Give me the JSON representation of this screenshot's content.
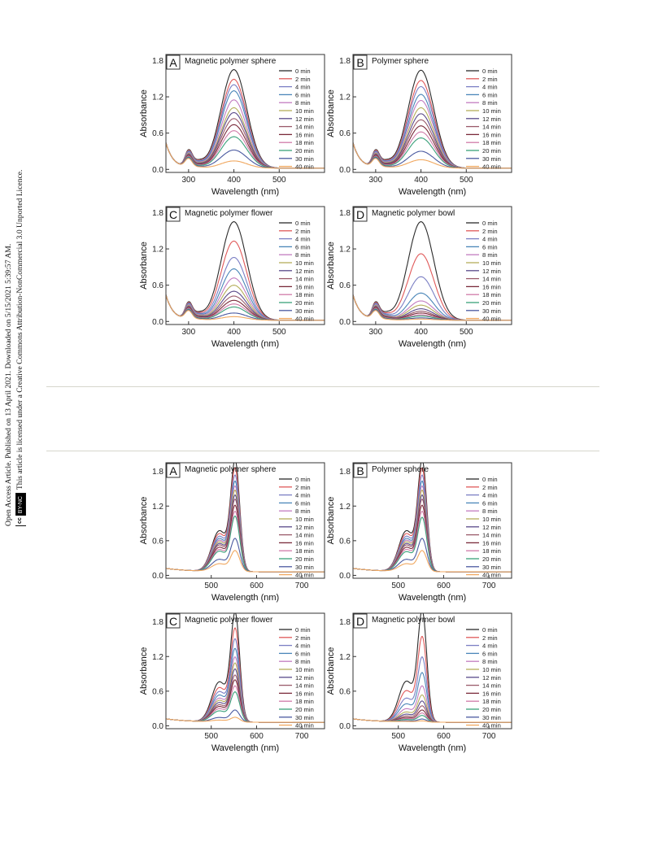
{
  "sidebar": {
    "line1": "Open Access Article. Published on 13 April 2021. Downloaded on 5/15/2021 5:39:57 AM.",
    "line2": "This article is licensed under a Creative Commons Attribution-NonCommercial 3.0 Unported Licence.",
    "badge_cc": "cc",
    "badge_by": "BY-NC"
  },
  "colors": {
    "series": [
      "#2b2b2b",
      "#e05a5a",
      "#7b7fc4",
      "#4a86b8",
      "#c27cc0",
      "#b5ae5a",
      "#5a4a8a",
      "#9a5a6a",
      "#7a2a3a",
      "#d07aa8",
      "#3aa07a",
      "#4a5aa0",
      "#f0a860",
      "#9a5ac8"
    ],
    "axis": "#333333",
    "rule": "#d6d6cc"
  },
  "chart_data": [
    {
      "id": "top-A",
      "type": "line",
      "panel_letter": "A",
      "title": "Magnetic polymer sphere",
      "xlabel": "Wavelength (nm)",
      "ylabel": "Absorbance",
      "xlim": [
        250,
        600
      ],
      "ylim": [
        -0.05,
        1.9
      ],
      "xticks": [
        300,
        400,
        500
      ],
      "yticks": [
        0.0,
        0.6,
        1.2,
        1.8
      ],
      "ytick_labels": [
        "0.0",
        "0.6",
        "1.2",
        "1.8"
      ],
      "legend": "top-right",
      "legend_offset": 0,
      "peak_wavelength": 400,
      "series": [
        {
          "name": "0 min",
          "peak": 1.63
        },
        {
          "name": "2 min",
          "peak": 1.47
        },
        {
          "name": "4 min",
          "peak": 1.38
        },
        {
          "name": "6 min",
          "peak": 1.28
        },
        {
          "name": "8 min",
          "peak": 1.13
        },
        {
          "name": "10 min",
          "peak": 1.0
        },
        {
          "name": "12 min",
          "peak": 0.92
        },
        {
          "name": "14 min",
          "peak": 0.82
        },
        {
          "name": "16 min",
          "peak": 0.72
        },
        {
          "name": "18 min",
          "peak": 0.62
        },
        {
          "name": "20 min",
          "peak": 0.52
        },
        {
          "name": "30 min",
          "peak": 0.3
        },
        {
          "name": "40 min",
          "peak": 0.12
        }
      ]
    },
    {
      "id": "top-B",
      "type": "line",
      "panel_letter": "B",
      "title": "Polymer sphere",
      "xlabel": "Wavelength (nm)",
      "ylabel": "Absorbance",
      "xlim": [
        250,
        600
      ],
      "ylim": [
        -0.05,
        1.9
      ],
      "xticks": [
        300,
        400,
        500
      ],
      "yticks": [
        0.0,
        0.6,
        1.2,
        1.8
      ],
      "ytick_labels": [
        "0.0",
        "0.6",
        "1.2",
        "1.8"
      ],
      "legend": "top-right",
      "legend_offset": 0,
      "peak_wavelength": 400,
      "series": [
        {
          "name": "0 min",
          "peak": 1.62
        },
        {
          "name": "2 min",
          "peak": 1.45
        },
        {
          "name": "4 min",
          "peak": 1.35
        },
        {
          "name": "6 min",
          "peak": 1.22
        },
        {
          "name": "8 min",
          "peak": 1.12
        },
        {
          "name": "10 min",
          "peak": 1.0
        },
        {
          "name": "12 min",
          "peak": 0.9
        },
        {
          "name": "14 min",
          "peak": 0.8
        },
        {
          "name": "16 min",
          "peak": 0.7
        },
        {
          "name": "18 min",
          "peak": 0.6
        },
        {
          "name": "20 min",
          "peak": 0.5
        },
        {
          "name": "30 min",
          "peak": 0.28
        },
        {
          "name": "40 min",
          "peak": 0.14
        }
      ]
    },
    {
      "id": "top-C",
      "type": "line",
      "panel_letter": "C",
      "title": "Magnetic polymer flower",
      "xlabel": "Wavelength (nm)",
      "ylabel": "Absorbance",
      "xlim": [
        250,
        600
      ],
      "ylim": [
        -0.05,
        1.9
      ],
      "xticks": [
        300,
        400,
        500
      ],
      "yticks": [
        0.0,
        0.6,
        1.2,
        1.8
      ],
      "ytick_labels": [
        "0.0",
        "0.6",
        "1.2",
        "1.8"
      ],
      "legend": "top-right",
      "legend_offset": 0,
      "peak_wavelength": 400,
      "series": [
        {
          "name": "0 min",
          "peak": 1.63
        },
        {
          "name": "2 min",
          "peak": 1.31
        },
        {
          "name": "4 min",
          "peak": 1.04
        },
        {
          "name": "6 min",
          "peak": 0.85
        },
        {
          "name": "8 min",
          "peak": 0.7
        },
        {
          "name": "10 min",
          "peak": 0.58
        },
        {
          "name": "12 min",
          "peak": 0.48
        },
        {
          "name": "14 min",
          "peak": 0.4
        },
        {
          "name": "16 min",
          "peak": 0.33
        },
        {
          "name": "18 min",
          "peak": 0.27
        },
        {
          "name": "20 min",
          "peak": 0.22
        },
        {
          "name": "30 min",
          "peak": 0.12
        },
        {
          "name": "40 min",
          "peak": 0.06
        }
      ]
    },
    {
      "id": "top-D",
      "type": "line",
      "panel_letter": "D",
      "title": "Magnetic polymer bowl",
      "xlabel": "Wavelength (nm)",
      "ylabel": "Absorbance",
      "xlim": [
        250,
        600
      ],
      "ylim": [
        -0.05,
        1.9
      ],
      "xticks": [
        300,
        400,
        500
      ],
      "yticks": [
        0.0,
        0.6,
        1.2,
        1.8
      ],
      "ytick_labels": [
        "0.0",
        "0.6",
        "1.2",
        "1.8"
      ],
      "legend": "top-right",
      "legend_offset": 0,
      "peak_wavelength": 400,
      "series": [
        {
          "name": "0 min",
          "peak": 1.63
        },
        {
          "name": "2 min",
          "peak": 1.1
        },
        {
          "name": "4 min",
          "peak": 0.72
        },
        {
          "name": "6 min",
          "peak": 0.45
        },
        {
          "name": "8 min",
          "peak": 0.32
        },
        {
          "name": "10 min",
          "peak": 0.25
        },
        {
          "name": "12 min",
          "peak": 0.19
        },
        {
          "name": "14 min",
          "peak": 0.15
        },
        {
          "name": "16 min",
          "peak": 0.12
        },
        {
          "name": "18 min",
          "peak": 0.09
        },
        {
          "name": "20 min",
          "peak": 0.07
        },
        {
          "name": "30 min",
          "peak": 0.04
        },
        {
          "name": "40 min",
          "peak": 0.02
        }
      ]
    },
    {
      "id": "bot-A",
      "type": "line",
      "panel_letter": "A",
      "title": "Magnetic polymer sphere",
      "xlabel": "Wavelength (nm)",
      "ylabel": "Absorbance",
      "xlim": [
        400,
        750
      ],
      "ylim": [
        -0.05,
        1.95
      ],
      "xticks": [
        500,
        600,
        700
      ],
      "yticks": [
        0.0,
        0.6,
        1.2,
        1.8
      ],
      "ytick_labels": [
        "0.0",
        "0.6",
        "1.2",
        "1.8"
      ],
      "legend": "top-right",
      "legend_offset": 0,
      "peak_wavelength": 553,
      "series": [
        {
          "name": "0 min",
          "peak": 1.85
        },
        {
          "name": "2 min",
          "peak": 1.72
        },
        {
          "name": "4 min",
          "peak": 1.6
        },
        {
          "name": "6 min",
          "peak": 1.5
        },
        {
          "name": "8 min",
          "peak": 1.42
        },
        {
          "name": "10 min",
          "peak": 1.35
        },
        {
          "name": "12 min",
          "peak": 1.27
        },
        {
          "name": "14 min",
          "peak": 1.2
        },
        {
          "name": "16 min",
          "peak": 1.1
        },
        {
          "name": "18 min",
          "peak": 1.0
        },
        {
          "name": "20 min",
          "peak": 0.92
        },
        {
          "name": "30 min",
          "peak": 0.55
        },
        {
          "name": "40 min",
          "peak": 0.35
        }
      ]
    },
    {
      "id": "bot-B",
      "type": "line",
      "panel_letter": "B",
      "title": "Polymer sphere",
      "xlabel": "Wavelength (nm)",
      "ylabel": "Absorbance",
      "xlim": [
        400,
        750
      ],
      "ylim": [
        -0.05,
        1.95
      ],
      "xticks": [
        500,
        600,
        700
      ],
      "yticks": [
        0.0,
        0.6,
        1.2,
        1.8
      ],
      "ytick_labels": [
        "0.0",
        "0.6",
        "1.2",
        "1.8"
      ],
      "legend": "top-right",
      "legend_offset": 0,
      "peak_wavelength": 553,
      "series": [
        {
          "name": "0 min",
          "peak": 1.85
        },
        {
          "name": "2 min",
          "peak": 1.72
        },
        {
          "name": "4 min",
          "peak": 1.6
        },
        {
          "name": "6 min",
          "peak": 1.5
        },
        {
          "name": "8 min",
          "peak": 1.42
        },
        {
          "name": "10 min",
          "peak": 1.35
        },
        {
          "name": "12 min",
          "peak": 1.27
        },
        {
          "name": "14 min",
          "peak": 1.2
        },
        {
          "name": "16 min",
          "peak": 1.1
        },
        {
          "name": "18 min",
          "peak": 1.0
        },
        {
          "name": "20 min",
          "peak": 0.9
        },
        {
          "name": "30 min",
          "peak": 0.55
        },
        {
          "name": "40 min",
          "peak": 0.35
        }
      ]
    },
    {
      "id": "bot-C",
      "type": "line",
      "panel_letter": "C",
      "title": "Magnetic polymer flower",
      "xlabel": "Wavelength (nm)",
      "ylabel": "Absorbance",
      "xlim": [
        400,
        750
      ],
      "ylim": [
        -0.05,
        1.95
      ],
      "xticks": [
        500,
        600,
        700
      ],
      "yticks": [
        0.0,
        0.6,
        1.2,
        1.8
      ],
      "ytick_labels": [
        "0.0",
        "0.6",
        "1.2",
        "1.8"
      ],
      "legend": "top-right",
      "legend_offset": 0,
      "peak_wavelength": 553,
      "series": [
        {
          "name": "0 min",
          "peak": 1.82
        },
        {
          "name": "2 min",
          "peak": 1.56
        },
        {
          "name": "4 min",
          "peak": 1.38
        },
        {
          "name": "6 min",
          "peak": 1.22
        },
        {
          "name": "8 min",
          "peak": 1.08
        },
        {
          "name": "10 min",
          "peak": 0.98
        },
        {
          "name": "12 min",
          "peak": 0.88
        },
        {
          "name": "14 min",
          "peak": 0.78
        },
        {
          "name": "16 min",
          "peak": 0.7
        },
        {
          "name": "18 min",
          "peak": 0.6
        },
        {
          "name": "20 min",
          "peak": 0.5
        },
        {
          "name": "30 min",
          "peak": 0.2
        },
        {
          "name": "40 min",
          "peak": 0.08
        }
      ]
    },
    {
      "id": "bot-D",
      "type": "line",
      "panel_letter": "D",
      "title": "Magnetic polymer bowl",
      "xlabel": "Wavelength (nm)",
      "ylabel": "Absorbance",
      "xlim": [
        400,
        750
      ],
      "ylim": [
        -0.05,
        1.95
      ],
      "xticks": [
        500,
        600,
        700
      ],
      "yticks": [
        0.0,
        0.6,
        1.2,
        1.8
      ],
      "ytick_labels": [
        "0.0",
        "0.6",
        "1.2",
        "1.8"
      ],
      "legend": "top-right",
      "legend_offset": 0,
      "peak_wavelength": 553,
      "series": [
        {
          "name": "0 min",
          "peak": 1.85
        },
        {
          "name": "2 min",
          "peak": 1.42
        },
        {
          "name": "4 min",
          "peak": 1.08
        },
        {
          "name": "6 min",
          "peak": 0.82
        },
        {
          "name": "8 min",
          "peak": 0.6
        },
        {
          "name": "10 min",
          "peak": 0.45
        },
        {
          "name": "12 min",
          "peak": 0.35
        },
        {
          "name": "14 min",
          "peak": 0.27
        },
        {
          "name": "16 min",
          "peak": 0.2
        },
        {
          "name": "18 min",
          "peak": 0.15
        },
        {
          "name": "20 min",
          "peak": 0.11
        },
        {
          "name": "30 min",
          "peak": 0.05
        },
        {
          "name": "40 min",
          "peak": 0.02
        }
      ]
    }
  ]
}
